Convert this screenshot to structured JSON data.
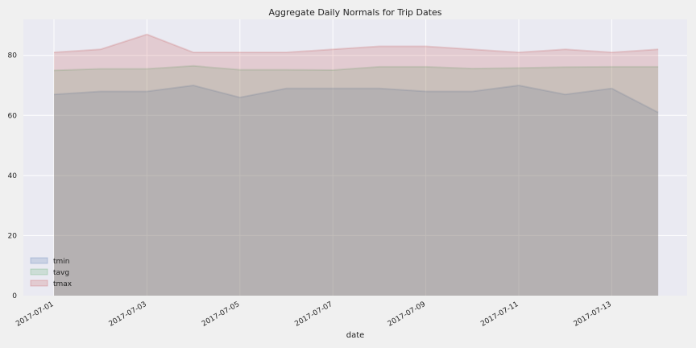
{
  "chart_data": {
    "type": "area",
    "title": "Aggregate Daily Normals for Trip Dates",
    "xlabel": "date",
    "ylabel": "",
    "x": [
      "2017-07-01",
      "2017-07-02",
      "2017-07-03",
      "2017-07-04",
      "2017-07-05",
      "2017-07-06",
      "2017-07-07",
      "2017-07-08",
      "2017-07-09",
      "2017-07-10",
      "2017-07-11",
      "2017-07-12",
      "2017-07-13",
      "2017-07-14"
    ],
    "x_tick_labels": [
      "2017-07-01",
      "2017-07-03",
      "2017-07-05",
      "2017-07-07",
      "2017-07-09",
      "2017-07-11",
      "2017-07-13"
    ],
    "y_ticks": [
      0,
      20,
      40,
      60,
      80
    ],
    "ylim": [
      0,
      92
    ],
    "grid": true,
    "legend_position": "bottom-left",
    "stacked": false,
    "series": [
      {
        "name": "tmin",
        "color": "#4c72b0",
        "values": [
          67,
          68,
          68,
          70,
          66,
          69,
          69,
          69,
          68,
          68,
          70,
          67,
          69,
          61
        ]
      },
      {
        "name": "tavg",
        "color": "#55a868",
        "values": [
          75,
          75.5,
          75.5,
          76.5,
          75.2,
          75.2,
          75.1,
          76.2,
          76.2,
          75.6,
          75.8,
          76.1,
          76.2,
          76.2
        ]
      },
      {
        "name": "tmax",
        "color": "#c44e52",
        "values": [
          81,
          82,
          87,
          81,
          81,
          81,
          82,
          83,
          83,
          82,
          81,
          82,
          81,
          82
        ]
      }
    ]
  }
}
